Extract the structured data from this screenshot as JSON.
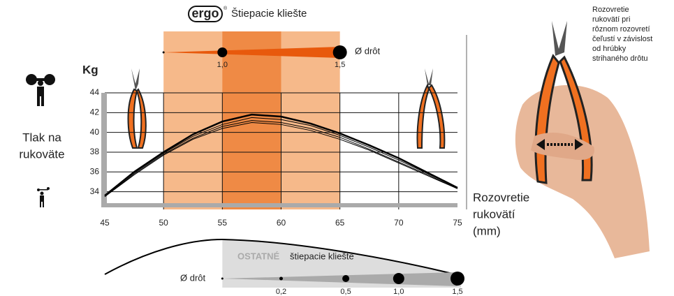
{
  "chart_data": {
    "type": "line",
    "brand": "ergo",
    "registered": "®",
    "title": "Štiepacie kliešte",
    "y_unit": "Kg",
    "ylabel_lines": [
      "Tlak na",
      "rukoväte"
    ],
    "xlabel_lines": [
      "Rozovretie",
      "rukovätí",
      "(mm)"
    ],
    "xlim": [
      45,
      75
    ],
    "xticks": [
      45,
      50,
      55,
      60,
      65,
      70,
      75
    ],
    "ylim": [
      32.7,
      44
    ],
    "yticks": [
      34,
      36,
      38,
      40,
      42,
      44
    ],
    "grid": true,
    "bands": [
      {
        "from": 50,
        "to": 65,
        "color": "#f6b98a"
      },
      {
        "from": 55,
        "to": 60,
        "color": "#ef8a45"
      }
    ],
    "x": [
      45,
      47.5,
      50,
      52.5,
      55,
      57.5,
      60,
      62.5,
      65,
      67.5,
      70,
      72.5,
      75
    ],
    "series": [
      {
        "color": "#000000",
        "values": [
          33.6,
          36.0,
          38.0,
          39.8,
          41.1,
          41.8,
          41.6,
          40.9,
          39.9,
          38.7,
          37.4,
          35.9,
          34.4
        ]
      },
      {
        "color": "#000000",
        "values": [
          33.6,
          35.9,
          37.9,
          39.6,
          40.8,
          41.5,
          41.3,
          40.7,
          39.7,
          38.5,
          37.2,
          35.8,
          34.4
        ]
      },
      {
        "color": "#000000",
        "values": [
          33.5,
          35.8,
          37.8,
          39.4,
          40.6,
          41.2,
          41.0,
          40.4,
          39.5,
          38.3,
          37.0,
          35.7,
          34.3
        ]
      },
      {
        "color": "#000000",
        "values": [
          33.5,
          35.7,
          37.7,
          39.3,
          40.4,
          41.0,
          40.8,
          40.2,
          39.3,
          38.2,
          36.9,
          35.6,
          34.3
        ]
      }
    ],
    "wire": {
      "label": "Ø drôt",
      "color": "#e8590c",
      "x": [
        50,
        55,
        65
      ],
      "labels": [
        null,
        "1,0",
        "1,5"
      ]
    },
    "other": {
      "title": "OSTATNÉ",
      "subtitle": "štiepacie kliešte",
      "wire_label": "Ø drôt",
      "x": [
        55,
        60,
        65.5,
        70,
        75
      ],
      "labels": [
        null,
        "0,2",
        "0,5",
        "1,0",
        "1,5"
      ]
    },
    "note_lines": [
      "Rozovretie",
      "rukovätí pri",
      "rôznom rozovretí",
      "čeľustí v závislost",
      "od hrúbky",
      "strihaného drôtu"
    ]
  }
}
